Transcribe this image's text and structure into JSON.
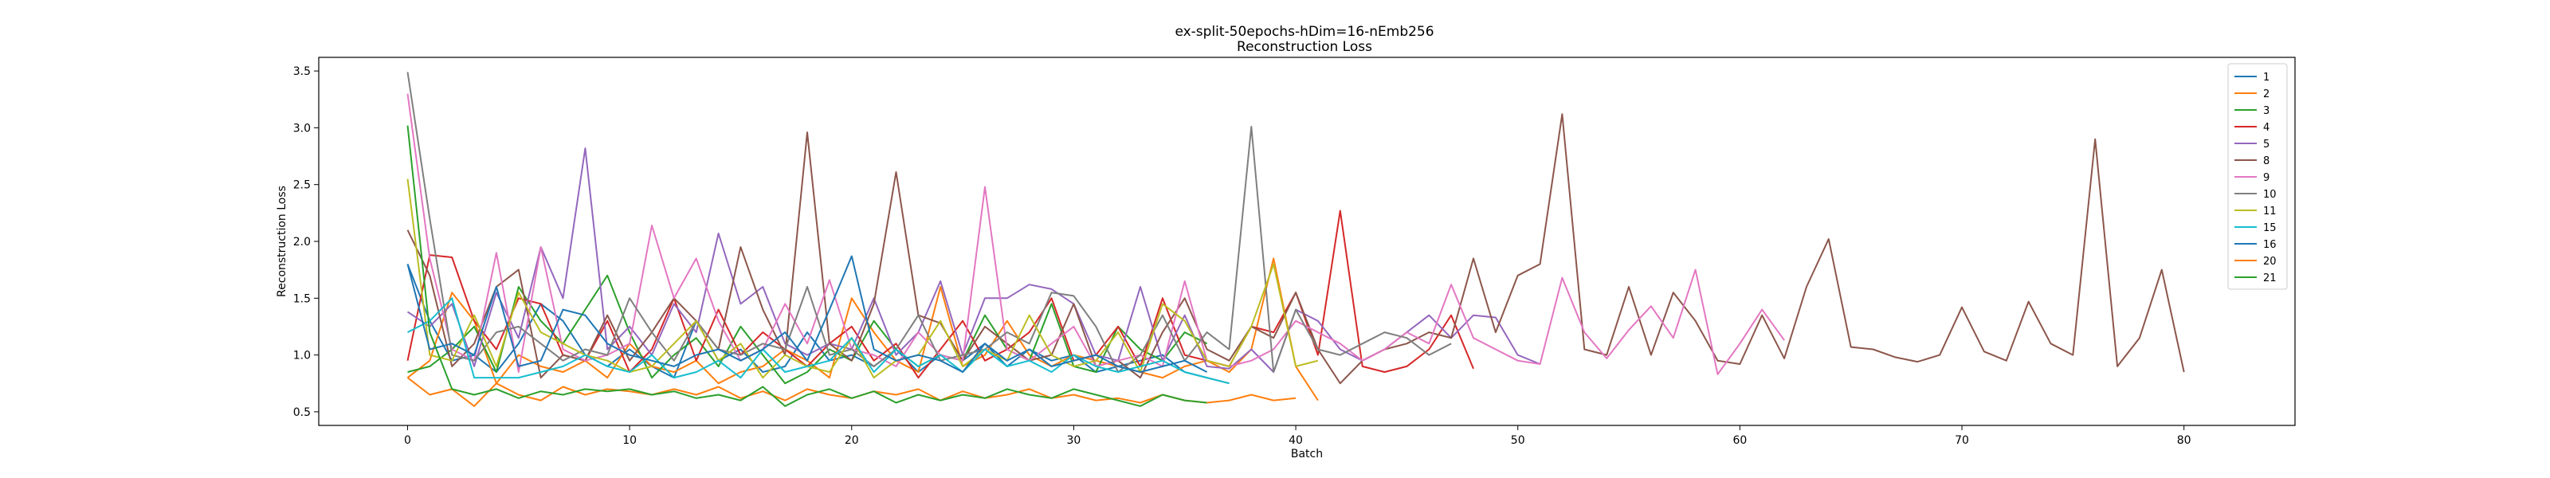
{
  "chart_data": {
    "type": "line",
    "title": "ex-split-50epochs-hDim=16-nEmb256",
    "subtitle": "Reconstruction Loss",
    "xlabel": "Batch",
    "ylabel": "Reconstruction Loss",
    "xlim": [
      -4,
      85
    ],
    "ylim": [
      0.38,
      3.62
    ],
    "xticks": [
      0,
      10,
      20,
      30,
      40,
      50,
      60,
      70,
      80
    ],
    "yticks": [
      0.5,
      1.0,
      1.5,
      2.0,
      2.5,
      3.0,
      3.5
    ],
    "ytick_labels": [
      "0.5",
      "1.0",
      "1.5",
      "2.0",
      "2.5",
      "3.0",
      "3.5"
    ],
    "legend_position": "top-right",
    "grid": false,
    "series": [
      {
        "name": "1",
        "color": "#1f77b4",
        "values": [
          1.8,
          1.3,
          0.95,
          1.0,
          0.85,
          1.1,
          1.45,
          1.3,
          1.0,
          0.9,
          1.05,
          0.9,
          0.8,
          1.3,
          0.95,
          1.05,
          0.85,
          0.9,
          1.2,
          0.95,
          1.0,
          0.9,
          1.05,
          0.85,
          1.0,
          0.95,
          1.1,
          0.9,
          1.05,
          0.95,
          1.0,
          0.85,
          0.9,
          0.95,
          1.0,
          0.85,
          0.8,
          0.75
        ]
      },
      {
        "name": "2",
        "color": "#ff7f0e",
        "values": [
          0.8,
          0.95,
          1.55,
          1.3,
          0.75,
          1.0,
          0.9,
          0.85,
          0.95,
          0.8,
          1.1,
          0.9,
          0.85,
          0.95,
          0.75,
          0.85,
          0.9,
          1.05,
          0.95,
          0.8,
          1.5,
          1.2,
          0.95,
          0.85,
          1.6,
          0.9,
          1.0,
          1.3,
          1.0,
          0.9,
          1.0,
          0.95,
          0.9,
          0.85,
          0.8,
          0.9,
          0.95,
          0.85,
          1.05,
          1.85,
          0.9,
          0.6
        ]
      },
      {
        "name": "3",
        "color": "#2ca02c",
        "values": [
          0.85,
          0.9,
          1.05,
          1.25,
          0.85,
          1.6,
          1.3,
          1.1,
          1.4,
          1.7,
          1.2,
          0.8,
          1.0,
          1.15,
          0.9,
          1.25,
          1.0,
          0.75,
          0.85,
          1.05,
          0.95,
          1.3,
          1.05,
          0.9,
          1.0,
          0.95,
          1.35,
          1.05,
          0.95,
          1.45,
          0.9,
          0.85,
          1.25,
          1.05,
          0.95,
          1.2,
          1.1
        ]
      },
      {
        "name": "4",
        "color": "#d62728",
        "values": [
          0.95,
          1.88,
          1.86,
          1.3,
          1.05,
          1.5,
          1.45,
          1.0,
          0.95,
          1.3,
          0.85,
          1.05,
          1.5,
          0.95,
          1.4,
          1.0,
          1.2,
          1.05,
          0.9,
          1.1,
          1.25,
          0.95,
          1.1,
          0.8,
          1.05,
          1.3,
          0.95,
          1.05,
          1.2,
          1.5,
          0.95,
          1.0,
          1.25,
          0.9,
          1.5,
          1.0,
          0.95,
          0.9,
          1.25,
          1.2,
          1.55,
          1.0,
          2.27,
          0.9,
          0.85,
          0.9,
          1.05,
          1.35,
          0.88
        ]
      },
      {
        "name": "5",
        "color": "#9467bd",
        "values": [
          1.38,
          1.25,
          1.45,
          0.9,
          1.55,
          1.15,
          1.95,
          1.5,
          2.82,
          1.05,
          1.25,
          1.0,
          1.45,
          1.2,
          2.07,
          1.45,
          1.6,
          1.1,
          1.0,
          1.1,
          1.05,
          1.5,
          1.0,
          1.2,
          1.65,
          1.0,
          1.5,
          1.5,
          1.62,
          1.58,
          1.45,
          1.0,
          0.95,
          1.6,
          0.95,
          1.35,
          0.9,
          0.88,
          1.05,
          0.85,
          1.4,
          1.3,
          1.05,
          0.95,
          1.05,
          1.2,
          1.35,
          1.15,
          1.35,
          1.33,
          1.0,
          0.92
        ]
      },
      {
        "name": "8",
        "color": "#8c564b",
        "values": [
          2.1,
          1.7,
          0.9,
          1.1,
          1.6,
          1.75,
          0.8,
          1.0,
          0.95,
          1.35,
          0.95,
          1.2,
          1.5,
          1.3,
          1.05,
          1.95,
          1.4,
          1.0,
          2.96,
          1.1,
          0.95,
          1.45,
          2.61,
          1.35,
          1.28,
          0.95,
          1.25,
          1.1,
          0.95,
          1.0,
          1.45,
          0.9,
          0.95,
          0.8,
          1.2,
          1.5,
          1.05,
          0.95,
          1.25,
          1.15,
          1.55,
          1.05,
          0.75,
          0.95,
          1.05,
          1.1,
          1.2,
          1.15,
          1.85,
          1.2,
          1.7,
          1.8,
          3.12,
          1.05,
          1.0,
          1.6,
          1.0,
          1.55,
          1.3,
          0.95,
          0.92,
          1.35,
          0.97,
          1.6,
          2.02,
          1.07,
          1.05,
          0.98,
          0.94,
          1.0,
          1.42,
          1.03,
          0.95,
          1.47,
          1.1,
          1.0,
          2.9,
          0.9,
          1.15,
          1.75,
          0.85
        ]
      },
      {
        "name": "9",
        "color": "#e377c2",
        "values": [
          3.3,
          1.85,
          1.05,
          0.95,
          1.9,
          0.85,
          1.95,
          1.05,
          0.95,
          1.0,
          1.1,
          2.14,
          1.5,
          1.85,
          1.3,
          0.95,
          1.05,
          1.45,
          1.1,
          1.66,
          1.05,
          1.0,
          0.9,
          1.2,
          1.0,
          0.95,
          2.48,
          1.05,
          0.95,
          1.1,
          1.25,
          0.9,
          0.95,
          1.0,
          0.9,
          1.65,
          0.95,
          0.9,
          0.95,
          1.05,
          1.3,
          1.2,
          1.1,
          0.95,
          1.05,
          1.2,
          1.1,
          1.62,
          1.15,
          1.05,
          0.95,
          0.92,
          1.68,
          1.2,
          0.97,
          1.22,
          1.43,
          1.15,
          1.75,
          0.83,
          1.1,
          1.4,
          1.13
        ]
      },
      {
        "name": "10",
        "color": "#7f7f7f",
        "values": [
          3.49,
          2.2,
          1.0,
          0.95,
          1.2,
          1.25,
          1.1,
          0.95,
          1.05,
          1.0,
          1.5,
          1.2,
          0.95,
          1.3,
          1.05,
          1.0,
          1.1,
          1.05,
          1.6,
          1.0,
          1.05,
          0.9,
          1.05,
          1.35,
          0.95,
          1.0,
          1.05,
          1.2,
          1.1,
          1.55,
          1.52,
          1.25,
          0.85,
          1.0,
          1.35,
          0.95,
          1.2,
          1.05,
          3.01,
          0.85,
          1.4,
          1.05,
          1.0,
          1.1,
          1.2,
          1.15,
          1.0,
          1.1
        ]
      },
      {
        "name": "11",
        "color": "#bcbd22",
        "values": [
          2.55,
          1.0,
          0.95,
          1.35,
          0.9,
          1.55,
          1.2,
          1.1,
          1.0,
          0.95,
          0.85,
          0.9,
          1.1,
          1.3,
          0.95,
          1.1,
          0.8,
          1.0,
          0.9,
          0.85,
          1.15,
          0.8,
          0.95,
          1.0,
          1.3,
          0.9,
          1.05,
          0.95,
          1.35,
          1.0,
          0.9,
          0.95,
          1.2,
          0.85,
          1.45,
          1.3,
          0.95,
          0.9,
          1.25,
          1.8,
          0.9,
          0.95
        ]
      },
      {
        "name": "15",
        "color": "#17becf",
        "values": [
          1.2,
          1.3,
          1.5,
          0.8,
          0.8,
          0.8,
          0.85,
          0.9,
          1.0,
          0.9,
          0.85,
          1.0,
          0.8,
          0.85,
          0.95,
          0.8,
          1.05,
          0.85,
          0.9,
          0.95,
          1.15,
          0.85,
          1.05,
          0.9,
          1.0,
          0.85,
          1.05,
          0.9,
          0.95,
          0.85,
          1.0,
          0.9,
          0.85,
          0.9,
          0.95,
          0.85,
          0.8,
          0.75
        ]
      },
      {
        "name": "16",
        "color": "#1f77b4",
        "values": [
          1.8,
          1.05,
          1.1,
          1.0,
          1.6,
          0.9,
          0.95,
          1.4,
          1.35,
          1.1,
          1.0,
          0.95,
          0.9,
          1.0,
          1.05,
          0.95,
          1.05,
          1.2,
          0.95,
          1.4,
          1.87,
          1.05,
          0.95,
          1.0,
          0.95,
          0.85,
          1.1,
          0.95,
          1.05,
          0.9,
          0.95,
          1.0,
          0.9,
          0.85,
          0.9,
          0.95,
          0.85
        ]
      },
      {
        "name": "20",
        "color": "#ff7f0e",
        "values": [
          0.8,
          0.65,
          0.7,
          0.55,
          0.75,
          0.65,
          0.6,
          0.72,
          0.65,
          0.7,
          0.68,
          0.65,
          0.7,
          0.65,
          0.72,
          0.62,
          0.68,
          0.6,
          0.7,
          0.65,
          0.62,
          0.68,
          0.65,
          0.7,
          0.6,
          0.68,
          0.62,
          0.65,
          0.7,
          0.62,
          0.65,
          0.6,
          0.62,
          0.58,
          0.65,
          0.6,
          0.58,
          0.6,
          0.65,
          0.6,
          0.62
        ]
      },
      {
        "name": "21",
        "color": "#2ca02c",
        "values": [
          3.02,
          1.2,
          0.7,
          0.65,
          0.7,
          0.62,
          0.68,
          0.65,
          0.7,
          0.68,
          0.7,
          0.65,
          0.68,
          0.62,
          0.65,
          0.6,
          0.72,
          0.55,
          0.65,
          0.7,
          0.62,
          0.68,
          0.58,
          0.65,
          0.6,
          0.65,
          0.62,
          0.7,
          0.65,
          0.62,
          0.7,
          0.65,
          0.6,
          0.55,
          0.65,
          0.6,
          0.58
        ]
      }
    ]
  }
}
